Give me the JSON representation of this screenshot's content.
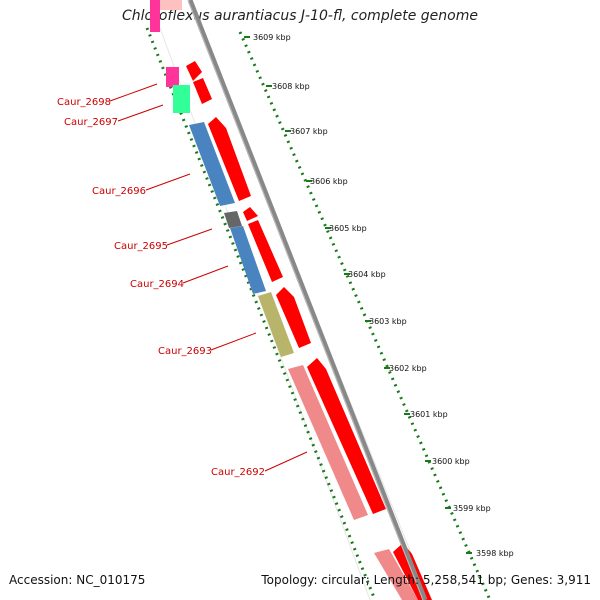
{
  "title": "Chloroflexus aurantiacus J-10-fl, complete genome",
  "accession": "Accession: NC_010175",
  "summary": "Topology: circular; Length: 5,258,541 bp; Genes: 3,911",
  "scale_labels": [
    "3609 kbp",
    "3608 kbp",
    "3607 kbp",
    "3606 kbp",
    "3605 kbp",
    "3604 kbp",
    "3603 kbp",
    "3602 kbp",
    "3601 kbp",
    "3600 kbp",
    "3599 kbp",
    "3598 kbp"
  ],
  "gene_labels": [
    "Caur_2698",
    "Caur_2697",
    "Caur_2696",
    "Caur_2695",
    "Caur_2694",
    "Caur_2693",
    "Caur_2692"
  ],
  "colors": {
    "cds_arrow": "#ff0000",
    "backbone": "#888888",
    "tick": "#1a7a1a",
    "label": "#cc0000",
    "cog_magenta": "#ff3399",
    "cog_green": "#33ff99",
    "cog_blue": "#4a84c0",
    "cog_grey": "#666666",
    "cog_olive": "#b8b46a",
    "cog_pink": "#f08a8a"
  }
}
